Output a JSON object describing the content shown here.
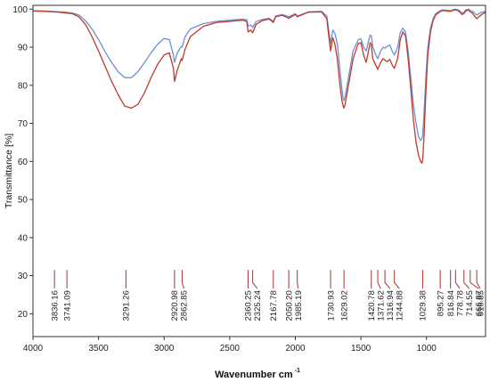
{
  "chart_data": {
    "type": "line",
    "xlabel": "Wavenumber cm",
    "xlabel_superscript": "-1",
    "ylabel": "Transmittance [%]",
    "xlim": [
      4000,
      550
    ],
    "ylim": [
      14,
      101
    ],
    "x_ticks": [
      4000,
      3500,
      3000,
      2500,
      2000,
      1500,
      1000
    ],
    "y_ticks": [
      20,
      30,
      40,
      50,
      60,
      70,
      80,
      90,
      100
    ],
    "grid": false,
    "colors": {
      "series_blue": "#6f8fd0",
      "series_red": "#c0392b",
      "peak_marker": "#a83232",
      "axis": "#333333"
    },
    "series": [
      {
        "color": "#6f8fd0",
        "x": [
          4000,
          3900,
          3800,
          3750,
          3700,
          3650,
          3600,
          3550,
          3500,
          3450,
          3400,
          3350,
          3300,
          3250,
          3200,
          3150,
          3100,
          3050,
          3000,
          2960,
          2930,
          2921,
          2900,
          2870,
          2863,
          2840,
          2800,
          2700,
          2600,
          2500,
          2400,
          2370,
          2360,
          2340,
          2325,
          2300,
          2250,
          2200,
          2168,
          2150,
          2100,
          2050,
          2000,
          1985,
          1900,
          1800,
          1760,
          1745,
          1731,
          1715,
          1700,
          1680,
          1660,
          1645,
          1635,
          1629,
          1620,
          1600,
          1560,
          1520,
          1500,
          1480,
          1460,
          1440,
          1430,
          1421,
          1410,
          1390,
          1372,
          1350,
          1330,
          1317,
          1300,
          1280,
          1260,
          1245,
          1220,
          1200,
          1180,
          1160,
          1140,
          1120,
          1100,
          1080,
          1060,
          1045,
          1035,
          1029,
          1020,
          1005,
          990,
          970,
          950,
          930,
          910,
          895,
          880,
          860,
          840,
          817,
          800,
          779,
          760,
          745,
          730,
          715,
          700,
          680,
          667,
          650,
          635,
          617,
          600,
          580,
          560,
          550
        ],
        "y": [
          99.6,
          99.5,
          99.3,
          99.2,
          99.0,
          98.5,
          97.0,
          94.8,
          92.0,
          88.8,
          86.0,
          83.5,
          82.0,
          82.0,
          83.5,
          86.0,
          88.5,
          90.8,
          92.3,
          92.0,
          88.0,
          86.0,
          88.5,
          90.2,
          90.0,
          92.8,
          94.8,
          96.2,
          96.8,
          97.1,
          97.4,
          97.2,
          95.6,
          95.8,
          95.2,
          96.7,
          97.3,
          97.6,
          96.8,
          98.2,
          98.6,
          98.0,
          98.8,
          98.2,
          99.3,
          99.4,
          98.2,
          94.5,
          91.0,
          94.5,
          93.8,
          91.0,
          84.0,
          79.0,
          76.5,
          76.0,
          77.0,
          81.0,
          89.0,
          92.0,
          92.2,
          90.0,
          89.0,
          92.0,
          93.2,
          93.0,
          90.2,
          88.2,
          87.0,
          89.0,
          90.0,
          89.8,
          90.2,
          90.6,
          88.8,
          88.0,
          90.0,
          93.8,
          95.0,
          94.0,
          89.0,
          82.0,
          75.0,
          70.0,
          66.5,
          65.5,
          66.0,
          67.0,
          72.0,
          82.0,
          90.0,
          95.0,
          97.5,
          98.8,
          99.3,
          99.6,
          99.8,
          99.8,
          99.7,
          99.6,
          99.8,
          100.0,
          99.8,
          99.5,
          99.0,
          99.2,
          99.8,
          100.0,
          99.6,
          99.5,
          99.0,
          98.5,
          98.8,
          99.2,
          99.3,
          99.4
        ]
      },
      {
        "color": "#c0392b",
        "x": [
          4000,
          3900,
          3800,
          3750,
          3700,
          3650,
          3600,
          3550,
          3500,
          3450,
          3400,
          3350,
          3300,
          3250,
          3200,
          3150,
          3100,
          3050,
          3000,
          2960,
          2930,
          2921,
          2900,
          2870,
          2863,
          2840,
          2800,
          2700,
          2600,
          2500,
          2400,
          2370,
          2360,
          2340,
          2325,
          2300,
          2250,
          2200,
          2168,
          2150,
          2100,
          2050,
          2000,
          1985,
          1900,
          1800,
          1760,
          1745,
          1731,
          1715,
          1700,
          1680,
          1660,
          1645,
          1635,
          1629,
          1620,
          1600,
          1560,
          1520,
          1500,
          1480,
          1460,
          1440,
          1430,
          1421,
          1410,
          1390,
          1372,
          1350,
          1330,
          1317,
          1300,
          1280,
          1260,
          1245,
          1220,
          1200,
          1180,
          1160,
          1140,
          1120,
          1100,
          1080,
          1060,
          1045,
          1035,
          1029,
          1020,
          1005,
          990,
          970,
          950,
          930,
          910,
          895,
          880,
          860,
          840,
          817,
          800,
          779,
          760,
          745,
          730,
          715,
          700,
          680,
          667,
          650,
          635,
          617,
          600,
          580,
          560,
          550
        ],
        "y": [
          99.5,
          99.4,
          99.2,
          99.0,
          98.8,
          98.0,
          96.0,
          92.8,
          89.0,
          85.0,
          81.0,
          77.5,
          74.5,
          74.0,
          75.0,
          78.0,
          82.0,
          85.5,
          88.0,
          88.5,
          84.5,
          81.0,
          84.0,
          87.0,
          86.5,
          89.5,
          92.8,
          95.5,
          96.5,
          96.8,
          97.1,
          96.8,
          94.0,
          94.5,
          93.8,
          96.0,
          97.0,
          97.4,
          96.5,
          98.0,
          98.4,
          97.6,
          98.6,
          98.0,
          99.2,
          99.3,
          97.5,
          93.0,
          89.0,
          92.5,
          91.0,
          87.0,
          80.0,
          76.0,
          74.5,
          74.0,
          75.0,
          79.0,
          87.0,
          91.0,
          91.2,
          88.0,
          86.0,
          89.5,
          91.2,
          90.8,
          87.0,
          85.5,
          84.2,
          86.0,
          87.0,
          86.6,
          86.2,
          86.8,
          85.2,
          84.5,
          87.0,
          92.0,
          94.0,
          93.0,
          87.0,
          79.0,
          71.0,
          65.0,
          61.5,
          60.0,
          59.5,
          60.5,
          66.0,
          78.0,
          88.0,
          94.0,
          97.0,
          98.5,
          99.0,
          99.4,
          99.6,
          99.6,
          99.5,
          99.4,
          99.7,
          99.8,
          99.6,
          99.2,
          98.6,
          98.8,
          99.5,
          99.8,
          99.3,
          99.0,
          98.2,
          97.5,
          98.0,
          98.6,
          99.0,
          99.2
        ]
      }
    ],
    "peak_labels": [
      "3836.16",
      "3741.09",
      "3291.26",
      "2920.98",
      "2862.85",
      "2360.25",
      "2325.24",
      "2167.78",
      "2050.20",
      "1985.19",
      "1730.93",
      "1629.02",
      "1420.78",
      "1371.62",
      "1316.94",
      "1244.88",
      "1029.38",
      "895.27",
      "816.84",
      "778.78",
      "714.55",
      "666.87",
      "616.85"
    ],
    "peak_positions": [
      3836.16,
      3741.09,
      3291.26,
      2920.98,
      2862.85,
      2360.25,
      2325.24,
      2167.78,
      2050.2,
      1985.19,
      1730.93,
      1629.02,
      1420.78,
      1371.62,
      1316.94,
      1244.88,
      1029.38,
      895.27,
      816.84,
      778.78,
      714.55,
      666.87,
      616.85
    ]
  }
}
